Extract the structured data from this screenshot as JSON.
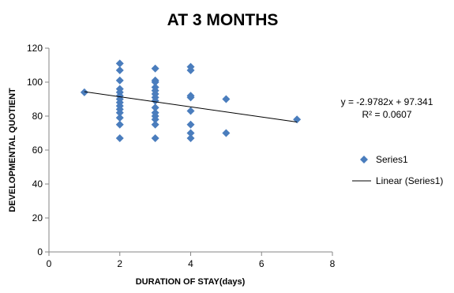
{
  "chart_data": {
    "type": "scatter",
    "title": "AT 3 MONTHS",
    "xlabel": "DURATION OF STAY(days)",
    "ylabel": "DEVELOPMENTAL QUOTIENT",
    "xlim": [
      0,
      8
    ],
    "ylim": [
      0,
      120
    ],
    "xticks": [
      0,
      2,
      4,
      6,
      8
    ],
    "yticks": [
      0,
      20,
      40,
      60,
      80,
      100,
      120
    ],
    "grid": false,
    "legend_position": "right",
    "series": [
      {
        "name": "Series1",
        "color": "#4a7dbd",
        "marker": "diamond",
        "points": [
          [
            1,
            94
          ],
          [
            2,
            111
          ],
          [
            2,
            107
          ],
          [
            2,
            101
          ],
          [
            2,
            96
          ],
          [
            2,
            94
          ],
          [
            2,
            92
          ],
          [
            2,
            90
          ],
          [
            2,
            88
          ],
          [
            2,
            86
          ],
          [
            2,
            84
          ],
          [
            2,
            82
          ],
          [
            2,
            79
          ],
          [
            2,
            75
          ],
          [
            2,
            67
          ],
          [
            3,
            108
          ],
          [
            3,
            101
          ],
          [
            3,
            100
          ],
          [
            3,
            97
          ],
          [
            3,
            95
          ],
          [
            3,
            93
          ],
          [
            3,
            91
          ],
          [
            3,
            89
          ],
          [
            3,
            85
          ],
          [
            3,
            82
          ],
          [
            3,
            80
          ],
          [
            3,
            78
          ],
          [
            3,
            75
          ],
          [
            3,
            67
          ],
          [
            4,
            109
          ],
          [
            4,
            107
          ],
          [
            4,
            92
          ],
          [
            4,
            91
          ],
          [
            4,
            83
          ],
          [
            4,
            75
          ],
          [
            4,
            70
          ],
          [
            4,
            67
          ],
          [
            5,
            90
          ],
          [
            5,
            70
          ],
          [
            7,
            78
          ]
        ]
      }
    ],
    "trendline": {
      "name": "Linear (Series1)",
      "slope": -2.9782,
      "intercept": 97.341,
      "x_range": [
        1,
        7
      ],
      "color": "#000000"
    },
    "annotations": {
      "equation": "y = -2.9782x + 97.341",
      "r_squared": "R² = 0.0607"
    },
    "legend": {
      "series_label": "Series1",
      "trend_label": "Linear (Series1)"
    }
  }
}
